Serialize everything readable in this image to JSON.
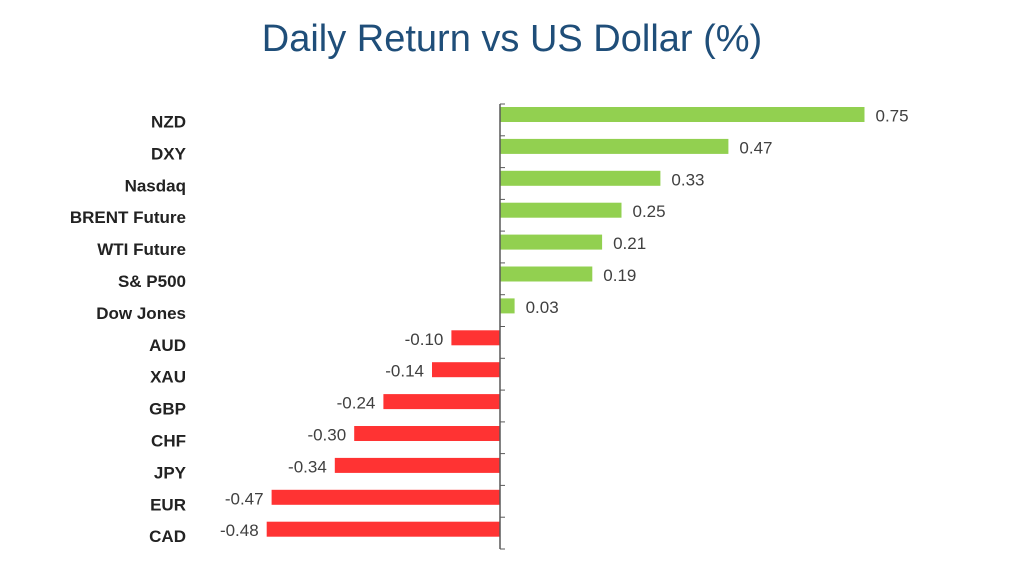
{
  "chart_data": {
    "type": "bar",
    "orientation": "horizontal",
    "title": "Daily Return vs US Dollar (%)",
    "categories": [
      "NZD",
      "DXY",
      "Nasdaq",
      "BRENT Future",
      "WTI Future",
      "S& P500",
      "Dow Jones",
      "AUD",
      "XAU",
      "GBP",
      "CHF",
      "JPY",
      "EUR",
      "CAD"
    ],
    "values": [
      0.75,
      0.47,
      0.33,
      0.25,
      0.21,
      0.19,
      0.03,
      -0.1,
      -0.14,
      -0.24,
      -0.3,
      -0.34,
      -0.47,
      -0.48
    ],
    "value_labels": [
      "0.75",
      "0.47",
      "0.33",
      "0.25",
      "0.21",
      "0.19",
      "0.03",
      "-0.10",
      "-0.14",
      "-0.24",
      "-0.30",
      "-0.34",
      "-0.47",
      "-0.48"
    ],
    "xlim": [
      -0.48,
      0.75
    ],
    "grid": false,
    "legend": "none",
    "colors": {
      "positive": "#92d050",
      "negative": "#ff3333",
      "axis": "#595959",
      "title": "#1f4e79"
    }
  }
}
